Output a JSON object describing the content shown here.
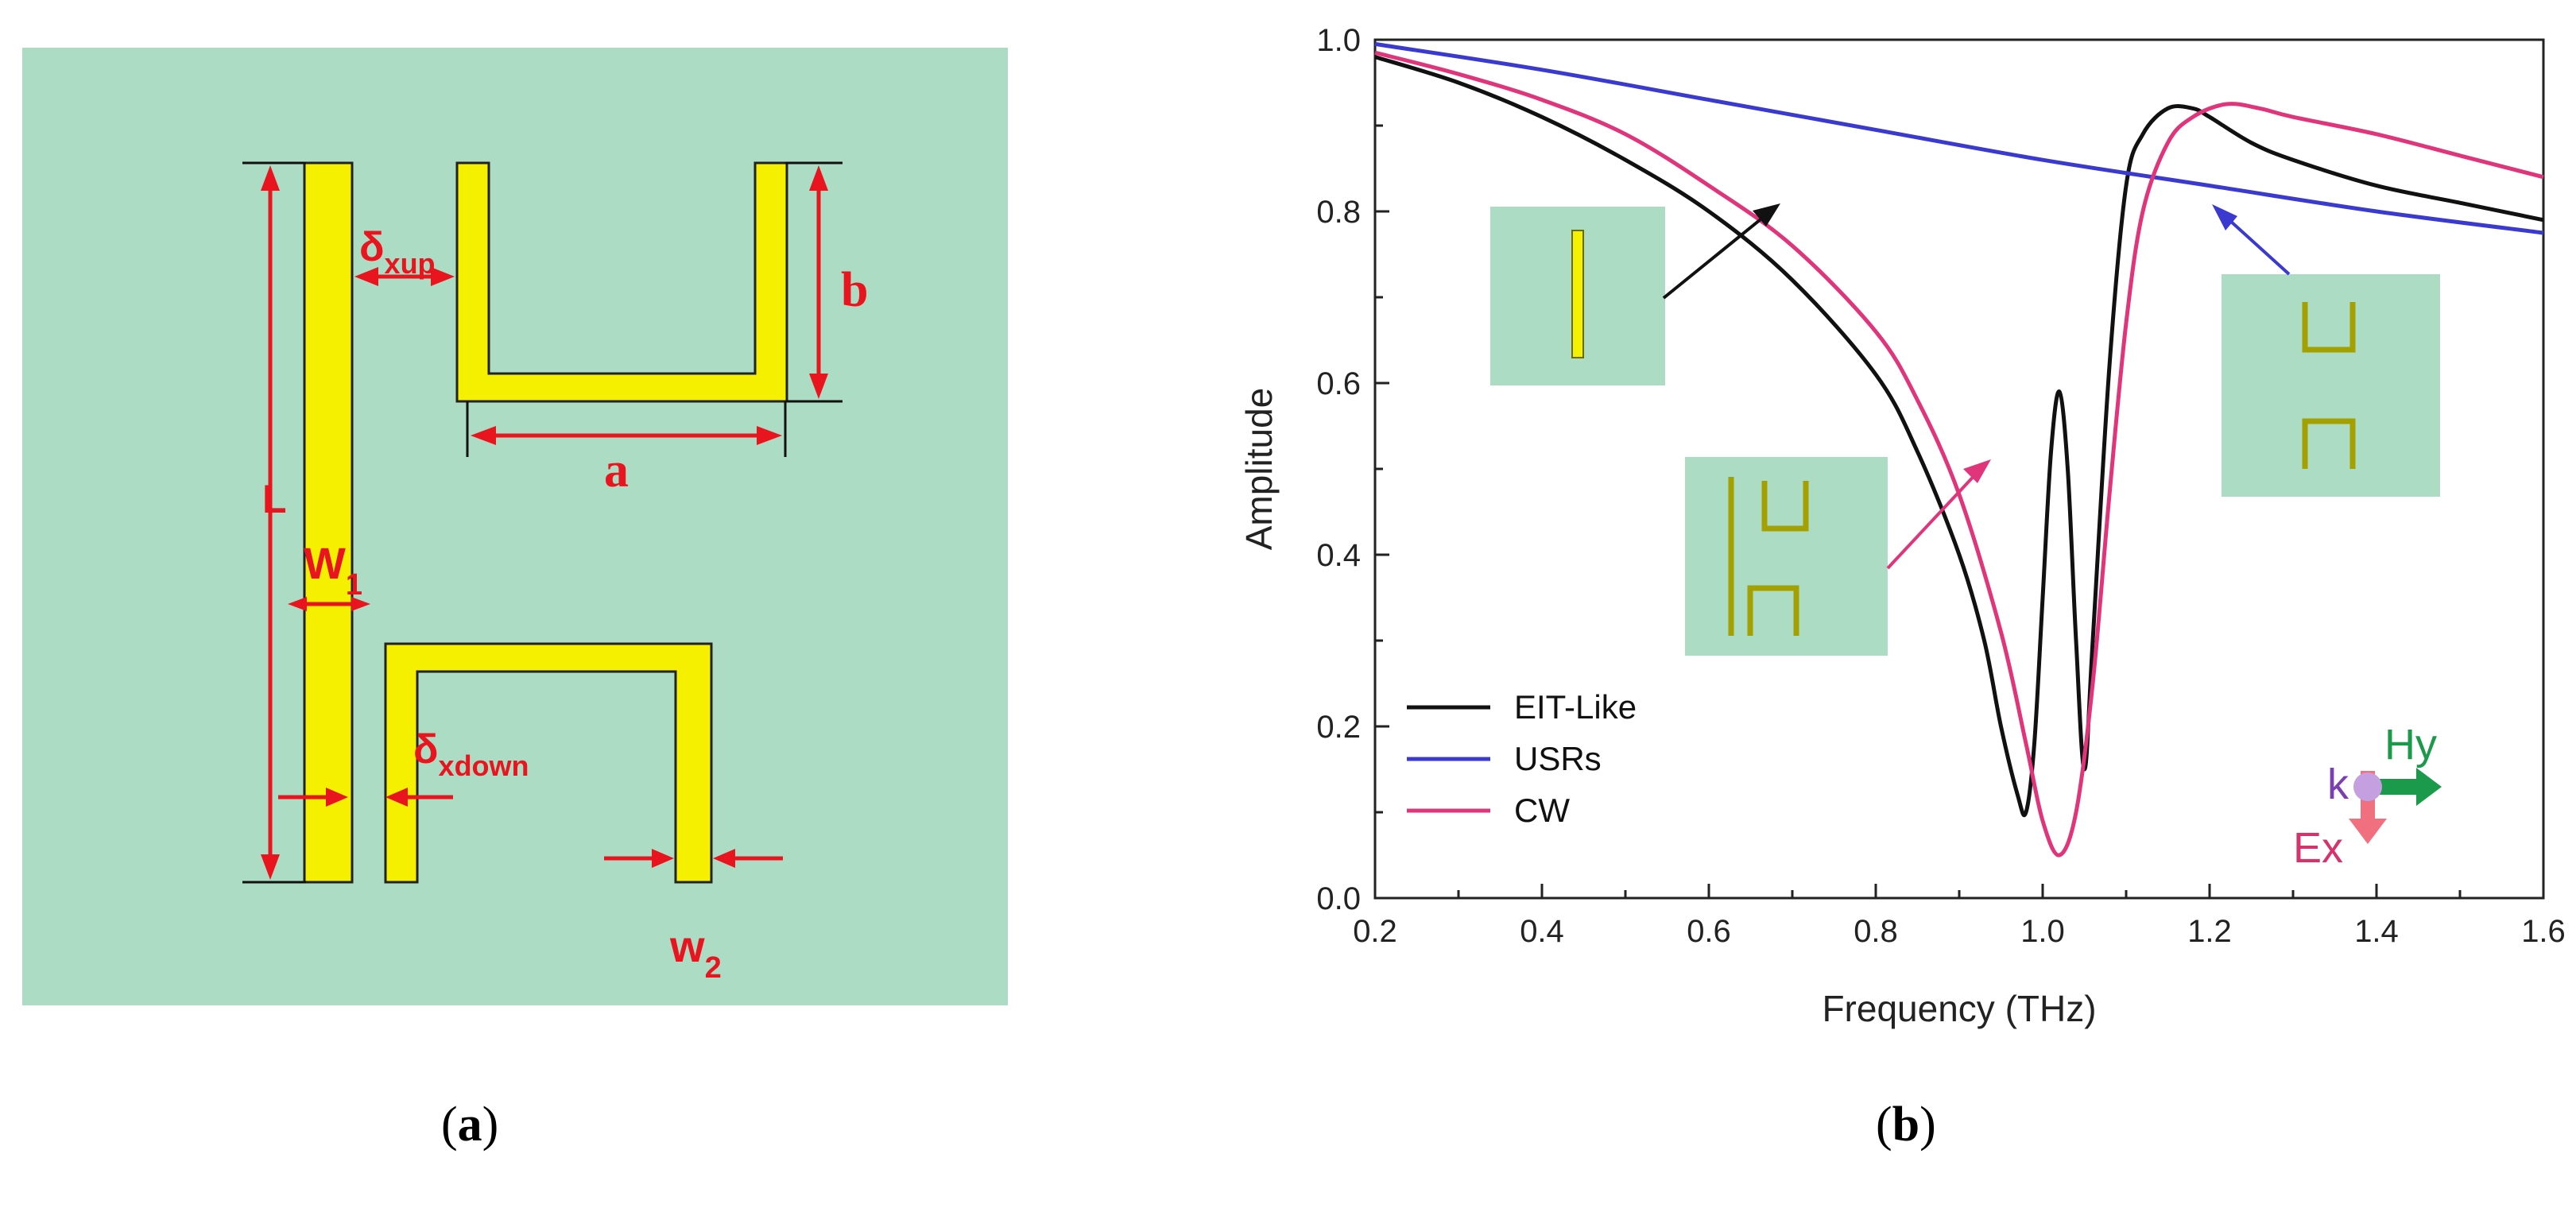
{
  "panel_a": {
    "labels": {
      "L": "L",
      "w1_main": "W",
      "w1_sub": "1",
      "delta_xup_main": "δ",
      "delta_xup_sub": "xup",
      "b": "b",
      "a": "a",
      "delta_xdown_main": "δ",
      "delta_xdown_sub": "xdown",
      "w2_main": "w",
      "w2_sub": "2"
    },
    "colors": {
      "background": "#acdcc4",
      "metal": "#f5f000",
      "dimension": "#e8141e"
    }
  },
  "panel_b": {
    "polarization": {
      "k": "k",
      "hy": "Hy",
      "ex": "Ex"
    }
  },
  "chart_data": {
    "type": "line",
    "xlabel": "Frequency (THz)",
    "ylabel": "Amplitude",
    "xlim": [
      0.2,
      1.6
    ],
    "ylim": [
      0.0,
      1.0
    ],
    "xticks": [
      "0.2",
      "0.4",
      "0.6",
      "0.8",
      "1.0",
      "1.2",
      "1.4",
      "1.6"
    ],
    "yticks": [
      "0.0",
      "0.2",
      "0.4",
      "0.6",
      "0.8",
      "1.0"
    ],
    "grid": false,
    "legend": "bottom-left",
    "series": [
      {
        "name": "EIT-Like",
        "color": "#111111",
        "x": [
          0.2,
          0.3,
          0.4,
          0.5,
          0.6,
          0.7,
          0.8,
          0.85,
          0.9,
          0.93,
          0.95,
          0.97,
          0.98,
          0.99,
          1.0,
          1.01,
          1.02,
          1.03,
          1.04,
          1.05,
          1.06,
          1.08,
          1.1,
          1.12,
          1.15,
          1.18,
          1.2,
          1.25,
          1.3,
          1.4,
          1.5,
          1.6
        ],
        "y": [
          0.98,
          0.95,
          0.91,
          0.86,
          0.8,
          0.72,
          0.61,
          0.52,
          0.4,
          0.3,
          0.2,
          0.12,
          0.1,
          0.18,
          0.35,
          0.52,
          0.59,
          0.5,
          0.3,
          0.15,
          0.3,
          0.62,
          0.83,
          0.89,
          0.92,
          0.92,
          0.91,
          0.88,
          0.86,
          0.83,
          0.81,
          0.79
        ]
      },
      {
        "name": "USRs",
        "color": "#3a3ad0",
        "x": [
          0.2,
          0.4,
          0.6,
          0.8,
          1.0,
          1.2,
          1.4,
          1.6
        ],
        "y": [
          0.995,
          0.965,
          0.93,
          0.895,
          0.86,
          0.83,
          0.8,
          0.775
        ]
      },
      {
        "name": "CW",
        "color": "#e0357a",
        "x": [
          0.2,
          0.3,
          0.4,
          0.5,
          0.6,
          0.7,
          0.8,
          0.85,
          0.9,
          0.95,
          0.98,
          1.0,
          1.02,
          1.04,
          1.06,
          1.08,
          1.1,
          1.12,
          1.15,
          1.18,
          1.22,
          1.26,
          1.3,
          1.4,
          1.5,
          1.6
        ],
        "y": [
          0.985,
          0.96,
          0.93,
          0.89,
          0.83,
          0.76,
          0.66,
          0.58,
          0.47,
          0.31,
          0.18,
          0.09,
          0.05,
          0.1,
          0.25,
          0.47,
          0.67,
          0.8,
          0.88,
          0.91,
          0.925,
          0.92,
          0.91,
          0.89,
          0.865,
          0.84
        ]
      }
    ]
  },
  "captions": {
    "a": "a",
    "b": "b"
  }
}
